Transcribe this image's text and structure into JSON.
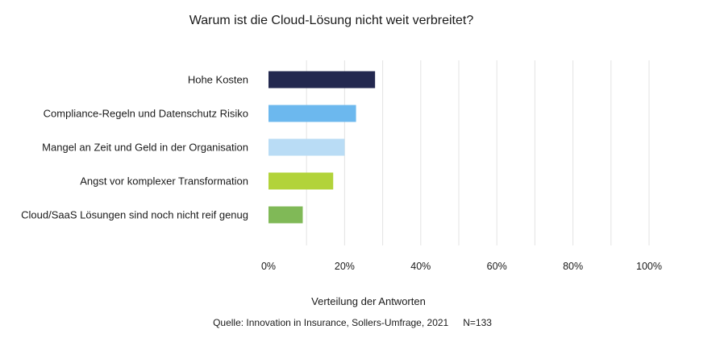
{
  "chart_data": {
    "type": "bar",
    "orientation": "horizontal",
    "title": "Warum ist die Cloud-Lösung nicht weit verbreitet?",
    "categories": [
      "Hohe Kosten",
      "Compliance-Regeln und Datenschutz Risiko",
      "Mangel an Zeit und Geld in der Organisation",
      "Angst vor komplexer Transformation",
      "Cloud/SaaS Lösungen sind noch nicht reif genug"
    ],
    "values": [
      28,
      23,
      20,
      17,
      9
    ],
    "colors": [
      "#23284f",
      "#6cb8ee",
      "#b9dcf5",
      "#b2d33a",
      "#80b957"
    ],
    "xlim": [
      0,
      100
    ],
    "xticks": [
      "0%",
      "20%",
      "40%",
      "60%",
      "80%",
      "100%"
    ],
    "xlabel": "Verteilung der Antworten",
    "ylabel": "",
    "grid": "vertical",
    "source": "Quelle: Innovation in Insurance, Sollers-Umfrage, 2021",
    "n_label": "N=133"
  }
}
